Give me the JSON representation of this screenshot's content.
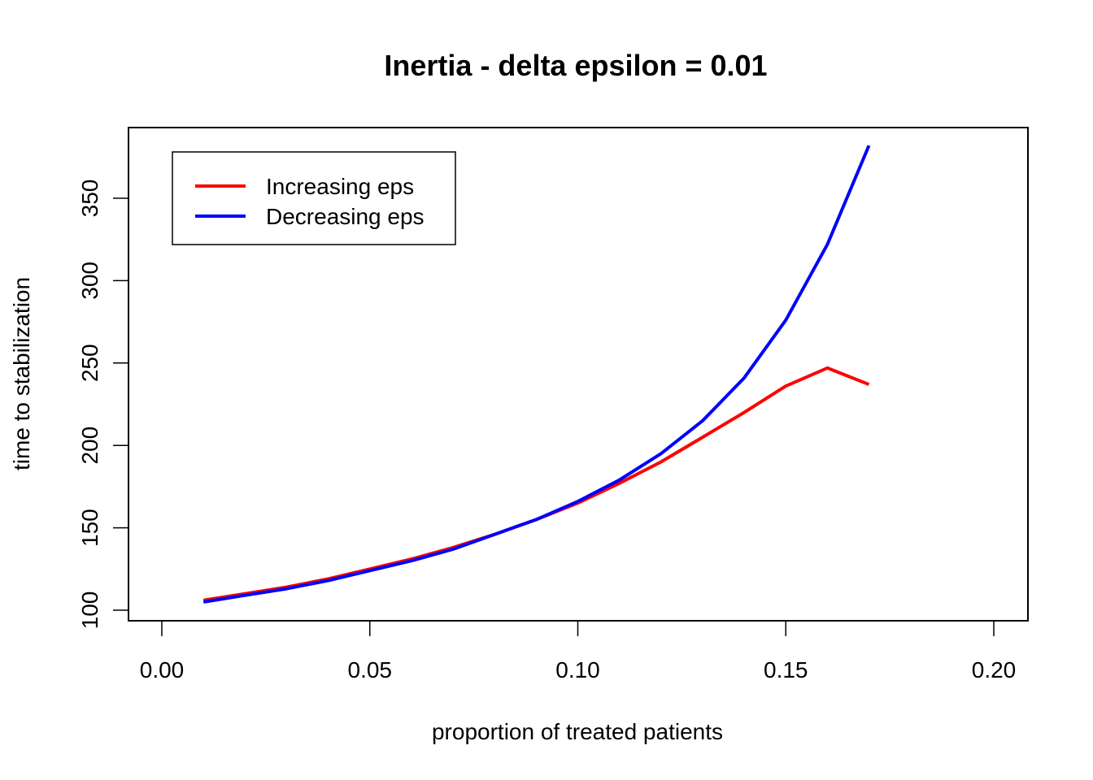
{
  "chart_data": {
    "type": "line",
    "title": "Inertia - delta epsilon = 0.01",
    "xlabel": "proportion of treated patients",
    "ylabel": "time to stabilization",
    "xlim": [
      0.0,
      0.2
    ],
    "ylim": [
      95,
      385
    ],
    "xticks": [
      "0.00",
      "0.05",
      "0.10",
      "0.15",
      "0.20"
    ],
    "yticks": [
      "100",
      "150",
      "200",
      "250",
      "300",
      "350"
    ],
    "grid": false,
    "legend_position": "top-left",
    "series": [
      {
        "name": "Increasing eps",
        "color": "#ff0000",
        "x": [
          0.01,
          0.02,
          0.03,
          0.04,
          0.05,
          0.06,
          0.07,
          0.08,
          0.09,
          0.1,
          0.11,
          0.12,
          0.13,
          0.14,
          0.15,
          0.16,
          0.17
        ],
        "y": [
          106,
          110,
          114,
          119,
          125,
          131,
          138,
          146,
          155,
          165,
          177,
          190,
          205,
          220,
          236,
          247,
          237
        ]
      },
      {
        "name": "Decreasing eps",
        "color": "#0000ff",
        "x": [
          0.01,
          0.02,
          0.03,
          0.04,
          0.05,
          0.06,
          0.07,
          0.08,
          0.09,
          0.1,
          0.11,
          0.12,
          0.13,
          0.14,
          0.15,
          0.16,
          0.17
        ],
        "y": [
          105,
          109,
          113,
          118,
          124,
          130,
          137,
          146,
          155,
          166,
          179,
          195,
          215,
          241,
          276,
          322,
          382
        ]
      }
    ]
  }
}
